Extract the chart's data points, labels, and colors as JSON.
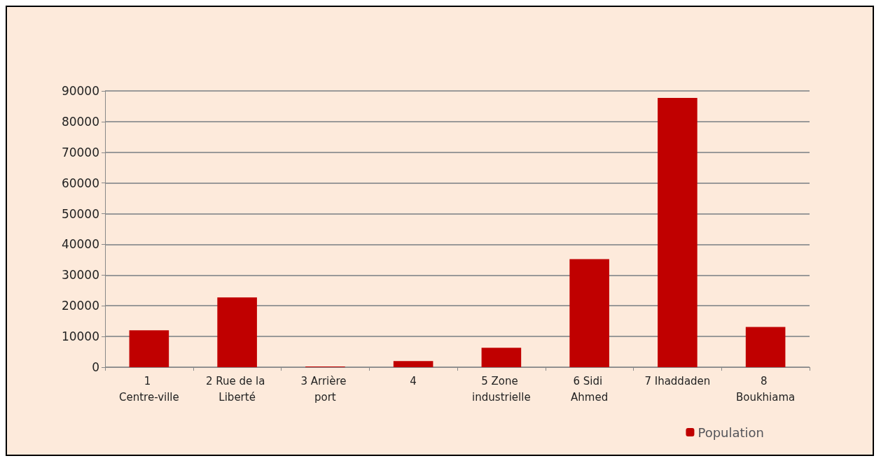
{
  "chart_data": {
    "type": "bar",
    "categories": [
      "1 Centre-ville",
      "2 Rue de la Liberté",
      "3 Arrière port",
      "4",
      "5 Zone industrielle",
      "6 Sidi Ahmed",
      "7 Ihaddaden",
      "8 Boukhiama"
    ],
    "series": [
      {
        "name": "Population",
        "color": "#c00000",
        "values": [
          12000,
          22700,
          200,
          2000,
          6300,
          35200,
          87700,
          13100
        ]
      }
    ],
    "ylim": [
      0,
      90000
    ],
    "yticks": [
      0,
      10000,
      20000,
      30000,
      40000,
      50000,
      60000,
      70000,
      80000,
      90000
    ],
    "grid": "y",
    "legend": "bottom right"
  }
}
